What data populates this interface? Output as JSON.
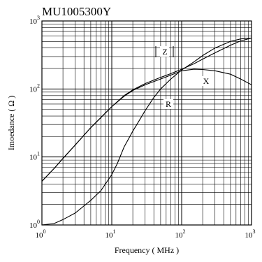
{
  "chart_data": {
    "type": "line",
    "title": "MU1005300Y",
    "xlabel": "Frequency ( MHz )",
    "ylabel": "Imoedance ( Ω )",
    "x_scale": "log",
    "y_scale": "log",
    "xlim": [
      1,
      1000
    ],
    "ylim": [
      1,
      1000
    ],
    "x_ticks": [
      {
        "base": "10",
        "exp": "0",
        "value": 1
      },
      {
        "base": "10",
        "exp": "1",
        "value": 10
      },
      {
        "base": "10",
        "exp": "2",
        "value": 100
      },
      {
        "base": "10",
        "exp": "3",
        "value": 1000
      }
    ],
    "y_ticks": [
      {
        "base": "10",
        "exp": "0",
        "value": 1
      },
      {
        "base": "10",
        "exp": "1",
        "value": 10
      },
      {
        "base": "10",
        "exp": "2",
        "value": 100
      },
      {
        "base": "10",
        "exp": "3",
        "value": 1000
      }
    ],
    "grid": true,
    "series": [
      {
        "name": "Z",
        "x": [
          1,
          1.5,
          2,
          3,
          5,
          7,
          10,
          15,
          20,
          30,
          50,
          70,
          100,
          150,
          200,
          300,
          500,
          700,
          1000
        ],
        "y": [
          4.4,
          6.8,
          9.5,
          15,
          27,
          38,
          55,
          80,
          97,
          120,
          148,
          168,
          195,
          235,
          275,
          340,
          440,
          510,
          560
        ]
      },
      {
        "name": "X",
        "x": [
          1,
          1.5,
          2,
          3,
          5,
          7,
          10,
          15,
          20,
          30,
          50,
          70,
          100,
          150,
          200,
          300,
          500,
          700,
          1000
        ],
        "y": [
          4.4,
          6.8,
          9.5,
          15,
          27,
          38,
          55,
          78,
          95,
          115,
          140,
          160,
          185,
          195,
          193,
          185,
          165,
          140,
          115
        ]
      },
      {
        "name": "R",
        "x": [
          1,
          1.5,
          2,
          3,
          5,
          7,
          10,
          12,
          15,
          20,
          25,
          30,
          40,
          50,
          70,
          100,
          150,
          200,
          300,
          500,
          700,
          1000
        ],
        "y": [
          1.0,
          1.05,
          1.2,
          1.5,
          2.3,
          3.2,
          5.5,
          8.0,
          14,
          24,
          35,
          48,
          75,
          100,
          140,
          190,
          250,
          310,
          400,
          500,
          545,
          560
        ]
      }
    ]
  }
}
